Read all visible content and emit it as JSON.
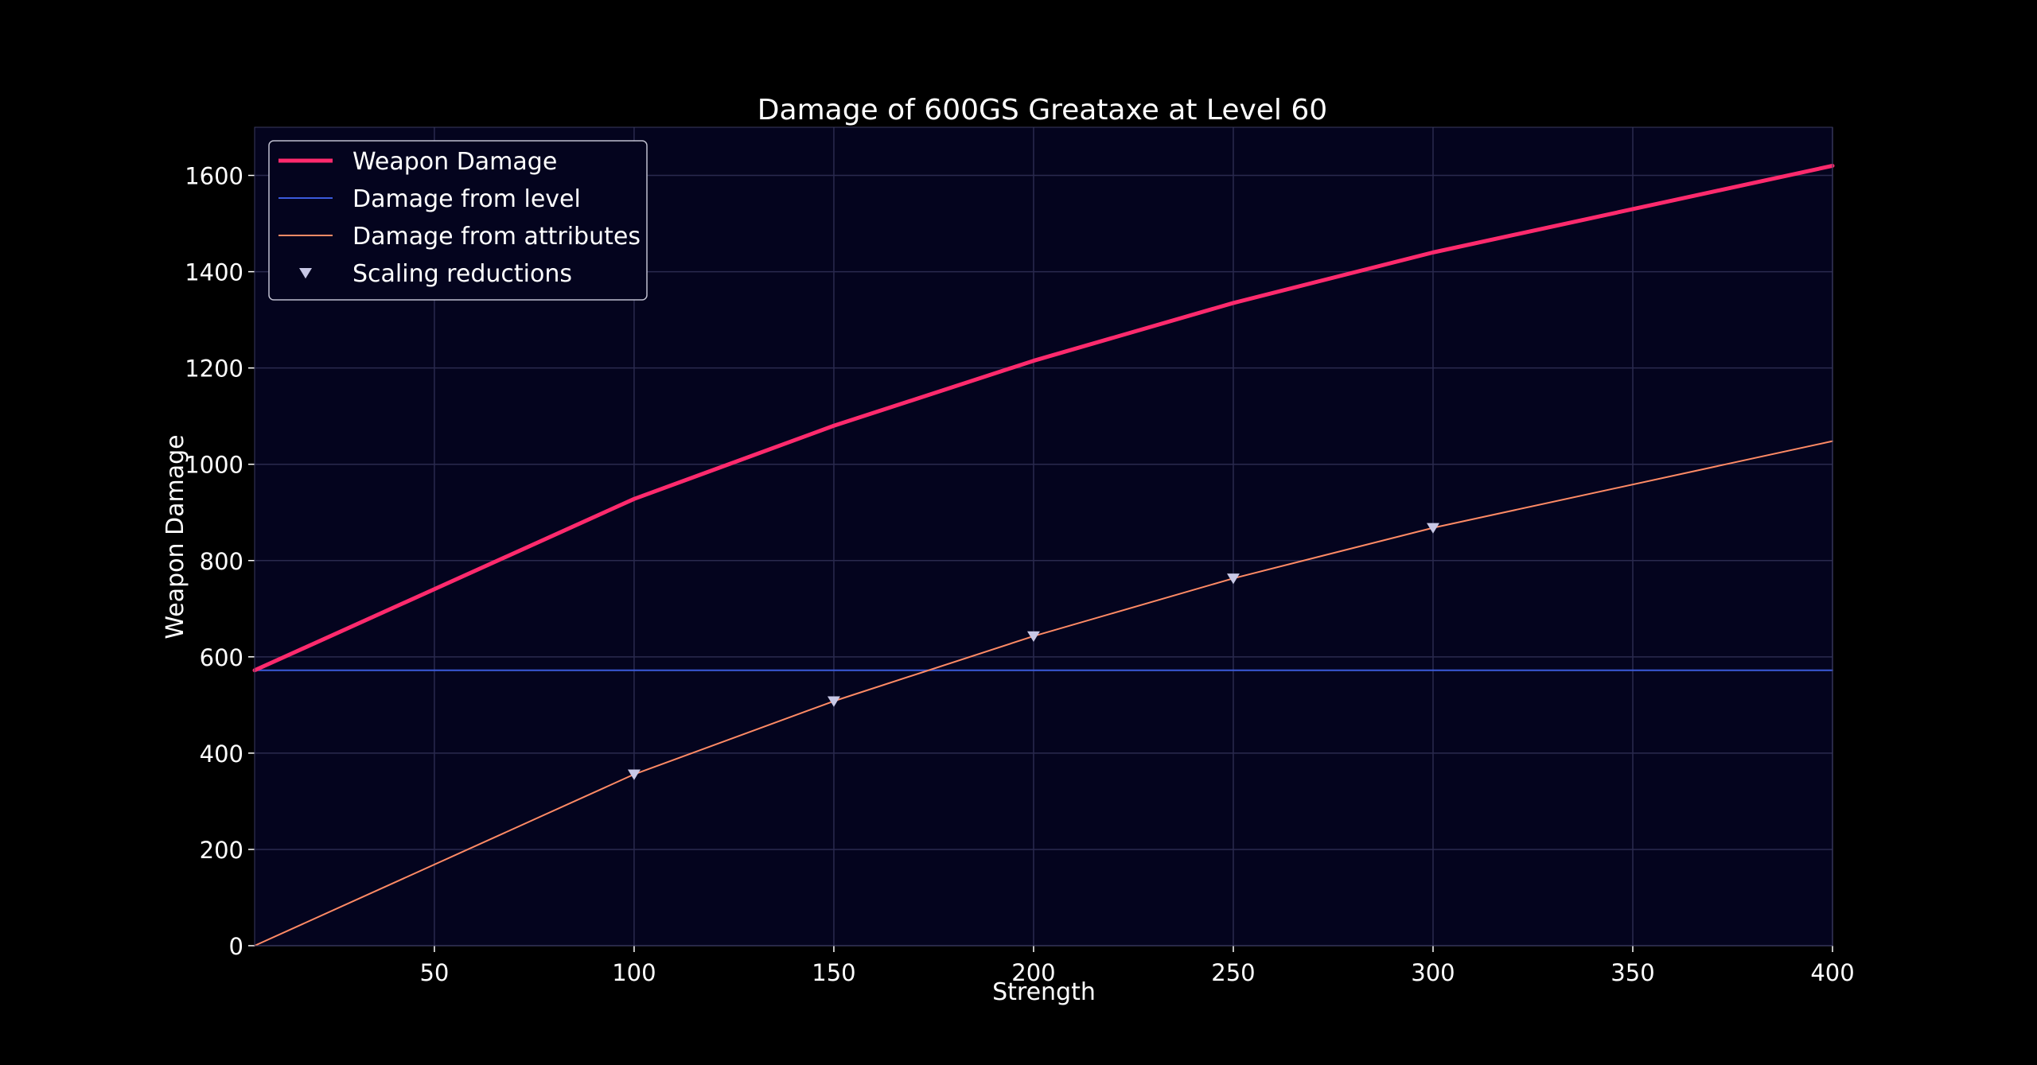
{
  "chart_data": {
    "type": "line",
    "title": "Damage of 600GS Greataxe at Level 60",
    "xlabel": "Strength",
    "ylabel": "Weapon Damage",
    "xlim": [
      5,
      400
    ],
    "ylim": [
      0,
      1700
    ],
    "xticks": [
      50,
      100,
      150,
      200,
      250,
      300,
      350,
      400
    ],
    "yticks": [
      0,
      200,
      400,
      600,
      800,
      1000,
      1200,
      1400,
      1600
    ],
    "grid": true,
    "legend_position": "top-left",
    "series": [
      {
        "name": "Weapon Damage",
        "color": "#ff2a6d",
        "style": "line-thick",
        "x": [
          5,
          100,
          150,
          200,
          250,
          300,
          400
        ],
        "y": [
          572,
          928,
          1080,
          1215,
          1335,
          1440,
          1620
        ]
      },
      {
        "name": "Damage from level",
        "color": "#3b5bdb",
        "style": "line-thin",
        "x": [
          5,
          400
        ],
        "y": [
          572,
          572
        ]
      },
      {
        "name": "Damage from attributes",
        "color": "#ff8a65",
        "style": "line-thin",
        "x": [
          5,
          100,
          150,
          200,
          250,
          300,
          400
        ],
        "y": [
          0,
          356,
          508,
          643,
          763,
          868,
          1048
        ]
      },
      {
        "name": "Scaling reductions",
        "color": "#c8c8e6",
        "style": "marker-triangle-down",
        "x": [
          100,
          150,
          200,
          250,
          300
        ],
        "y": [
          356,
          508,
          643,
          763,
          868
        ]
      }
    ]
  }
}
